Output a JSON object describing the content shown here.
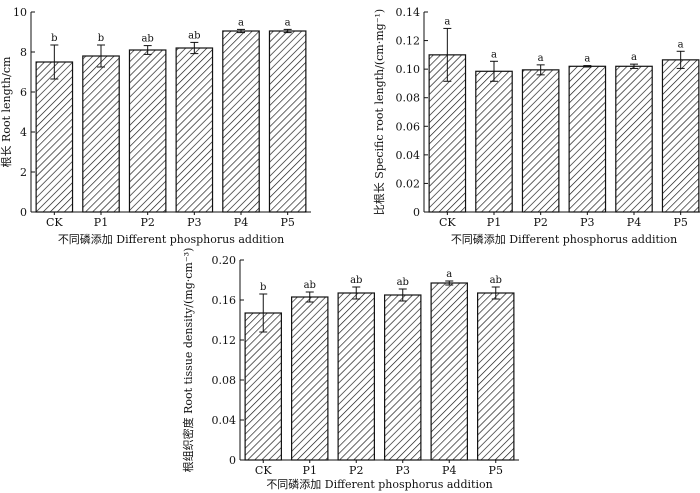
{
  "chart_data": [
    {
      "type": "bar",
      "categories": [
        "CK",
        "P1",
        "P2",
        "P3",
        "P4",
        "P5"
      ],
      "values": [
        7.5,
        7.8,
        8.1,
        8.2,
        9.05,
        9.05
      ],
      "errors": [
        0.85,
        0.55,
        0.22,
        0.28,
        0.08,
        0.08
      ],
      "significance": [
        "b",
        "b",
        "ab",
        "ab",
        "a",
        "a"
      ],
      "xlabel": "不同磷添加 Different phosphorus addition",
      "ylabel": "根长 Root length/cm",
      "ylim": [
        0,
        10
      ],
      "yticks": [
        "0",
        "2",
        "4",
        "6",
        "8",
        "10"
      ]
    },
    {
      "type": "bar",
      "categories": [
        "CK",
        "P1",
        "P2",
        "P3",
        "P4",
        "P5"
      ],
      "values": [
        0.11,
        0.0985,
        0.0995,
        0.102,
        0.102,
        0.1065
      ],
      "errors": [
        0.0185,
        0.007,
        0.0035,
        0.0005,
        0.0015,
        0.006
      ],
      "significance": [
        "a",
        "a",
        "a",
        "a",
        "a",
        "a"
      ],
      "xlabel": "不同磷添加 Different phosphorus addition",
      "ylabel": "比根长 Specific root length/(cm·mg⁻¹)",
      "ylim": [
        0,
        0.14
      ],
      "yticks": [
        "0",
        "0.02",
        "0.04",
        "0.06",
        "0.08",
        "0.10",
        "0.12",
        "0.14"
      ]
    },
    {
      "type": "bar",
      "categories": [
        "CK",
        "P1",
        "P2",
        "P3",
        "P4",
        "P5"
      ],
      "values": [
        0.147,
        0.163,
        0.167,
        0.165,
        0.177,
        0.167
      ],
      "errors": [
        0.019,
        0.005,
        0.006,
        0.006,
        0.002,
        0.006
      ],
      "significance": [
        "b",
        "ab",
        "ab",
        "ab",
        "a",
        "ab"
      ],
      "xlabel": "不同磷添加 Different phosphorus addition",
      "ylabel": "根组织密度 Root tissue density/(mg·cm⁻³)",
      "ylim": [
        0,
        0.2
      ],
      "yticks": [
        "0",
        "0.04",
        "0.08",
        "0.12",
        "0.16",
        "0.20"
      ]
    }
  ]
}
